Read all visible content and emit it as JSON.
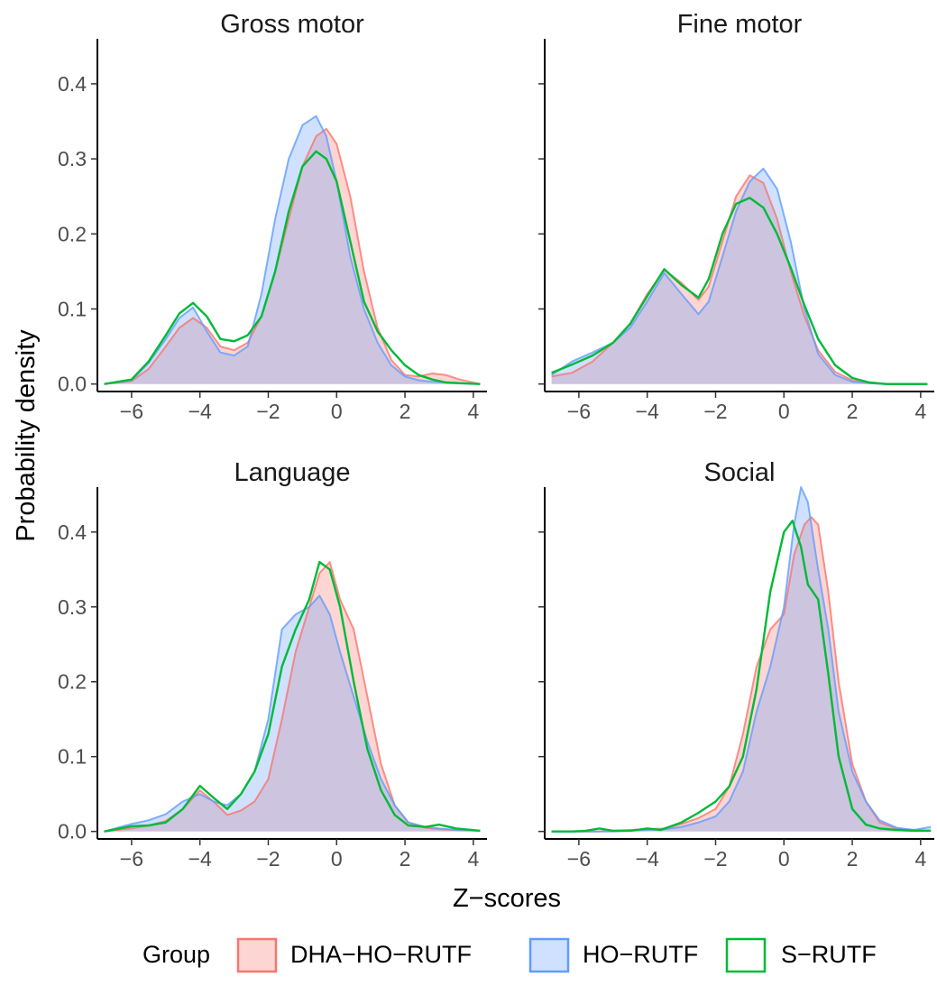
{
  "chart_data": {
    "type": "area",
    "xlabel": "Z−scores",
    "ylabel": "Probability density",
    "xlim": [
      -7,
      4.4
    ],
    "ylim": [
      -0.01,
      0.46
    ],
    "x_ticks": [
      -6,
      -4,
      -2,
      0,
      2,
      4
    ],
    "x_tick_labels": [
      "−6",
      "−4",
      "−2",
      "0",
      "2",
      "4"
    ],
    "y_ticks": [
      0.0,
      0.1,
      0.2,
      0.3,
      0.4
    ],
    "y_tick_labels": [
      "0.0",
      "0.1",
      "0.2",
      "0.3",
      "0.4"
    ],
    "grid": false,
    "legend": {
      "title": "Group",
      "placement": "bottom",
      "entries": [
        {
          "label": "DHA−HO−RUTF",
          "line_color": "#F8766D",
          "fill_color": "#F8766D"
        },
        {
          "label": "HO−RUTF",
          "line_color": "#619CFF",
          "fill_color": "#619CFF"
        },
        {
          "label": "S−RUTF",
          "line_color": "#00BA38",
          "fill_color": "#FFFFFF"
        }
      ]
    },
    "panels": [
      {
        "title": "Gross motor",
        "series": [
          {
            "name": "DHA−HO−RUTF",
            "x": [
              -6.8,
              -6,
              -5.5,
              -5,
              -4.6,
              -4.2,
              -3.8,
              -3.4,
              -3,
              -2.6,
              -2.2,
              -1.8,
              -1.4,
              -1,
              -0.6,
              -0.3,
              0,
              0.4,
              0.8,
              1.2,
              1.6,
              2,
              2.4,
              2.8,
              3.2,
              3.6,
              4.2
            ],
            "y": [
              0.0,
              0.004,
              0.02,
              0.05,
              0.075,
              0.088,
              0.075,
              0.05,
              0.045,
              0.055,
              0.09,
              0.15,
              0.22,
              0.29,
              0.33,
              0.34,
              0.32,
              0.25,
              0.15,
              0.075,
              0.032,
              0.012,
              0.01,
              0.014,
              0.012,
              0.006,
              0.0
            ]
          },
          {
            "name": "HO−RUTF",
            "x": [
              -6.8,
              -6,
              -5.5,
              -5,
              -4.6,
              -4.2,
              -3.8,
              -3.4,
              -3,
              -2.6,
              -2.2,
              -1.8,
              -1.4,
              -1,
              -0.6,
              -0.3,
              0,
              0.4,
              0.8,
              1.2,
              1.6,
              2,
              2.4,
              2.8,
              3.2,
              3.6,
              4.2
            ],
            "y": [
              0.0,
              0.005,
              0.028,
              0.06,
              0.088,
              0.102,
              0.07,
              0.042,
              0.038,
              0.05,
              0.12,
              0.22,
              0.3,
              0.345,
              0.357,
              0.33,
              0.27,
              0.17,
              0.1,
              0.055,
              0.025,
              0.01,
              0.005,
              0.003,
              0.002,
              0.001,
              0.0
            ]
          },
          {
            "name": "S−RUTF",
            "x": [
              -6.8,
              -6,
              -5.5,
              -5,
              -4.6,
              -4.2,
              -3.8,
              -3.4,
              -3,
              -2.6,
              -2.2,
              -1.8,
              -1.4,
              -1,
              -0.6,
              -0.3,
              0,
              0.4,
              0.8,
              1.2,
              1.6,
              2,
              2.4,
              2.8,
              3.2,
              3.6,
              4.2
            ],
            "y": [
              0.0,
              0.006,
              0.03,
              0.065,
              0.094,
              0.108,
              0.09,
              0.06,
              0.057,
              0.065,
              0.09,
              0.15,
              0.23,
              0.29,
              0.31,
              0.3,
              0.27,
              0.19,
              0.11,
              0.07,
              0.045,
              0.025,
              0.012,
              0.006,
              0.002,
              0.001,
              0.0
            ]
          }
        ]
      },
      {
        "title": "Fine motor",
        "series": [
          {
            "name": "DHA−HO−RUTF",
            "x": [
              -6.8,
              -6.2,
              -5.6,
              -5,
              -4.5,
              -4,
              -3.5,
              -3,
              -2.5,
              -2.2,
              -1.8,
              -1.4,
              -1,
              -0.6,
              -0.2,
              0.2,
              0.6,
              1,
              1.5,
              2,
              2.5,
              3,
              3.5,
              4.2
            ],
            "y": [
              0.01,
              0.015,
              0.03,
              0.055,
              0.08,
              0.12,
              0.152,
              0.135,
              0.112,
              0.13,
              0.19,
              0.25,
              0.278,
              0.268,
              0.22,
              0.15,
              0.09,
              0.045,
              0.016,
              0.005,
              0.001,
              0.0,
              0.0,
              0.0
            ]
          },
          {
            "name": "HO−RUTF",
            "x": [
              -6.8,
              -6.2,
              -5.6,
              -5,
              -4.5,
              -4,
              -3.5,
              -3,
              -2.5,
              -2.2,
              -1.8,
              -1.4,
              -1,
              -0.6,
              -0.2,
              0.2,
              0.6,
              1,
              1.5,
              2,
              2.5,
              3,
              3.5,
              4.2
            ],
            "y": [
              0.012,
              0.03,
              0.042,
              0.055,
              0.075,
              0.11,
              0.148,
              0.12,
              0.093,
              0.11,
              0.17,
              0.23,
              0.27,
              0.287,
              0.26,
              0.19,
              0.1,
              0.04,
              0.012,
              0.003,
              0.001,
              0.0,
              0.0,
              0.0
            ]
          },
          {
            "name": "S−RUTF",
            "x": [
              -6.8,
              -6.2,
              -5.6,
              -5,
              -4.5,
              -4,
              -3.5,
              -3,
              -2.5,
              -2.2,
              -1.8,
              -1.4,
              -1,
              -0.6,
              -0.2,
              0.2,
              0.6,
              1,
              1.5,
              2,
              2.5,
              3,
              3.5,
              4.2
            ],
            "y": [
              0.015,
              0.026,
              0.038,
              0.055,
              0.08,
              0.117,
              0.153,
              0.132,
              0.115,
              0.14,
              0.2,
              0.24,
              0.248,
              0.235,
              0.2,
              0.155,
              0.105,
              0.06,
              0.025,
              0.008,
              0.002,
              0.0,
              0.0,
              0.0
            ]
          }
        ]
      },
      {
        "title": "Language",
        "series": [
          {
            "name": "DHA−HO−RUTF",
            "x": [
              -6.8,
              -6,
              -5.5,
              -5,
              -4.5,
              -4,
              -3.6,
              -3.2,
              -2.8,
              -2.4,
              -2,
              -1.6,
              -1.2,
              -0.8,
              -0.5,
              -0.2,
              0.1,
              0.5,
              0.9,
              1.3,
              1.7,
              2.1,
              2.6,
              3,
              3.5,
              4.2
            ],
            "y": [
              0.0,
              0.004,
              0.008,
              0.014,
              0.03,
              0.055,
              0.04,
              0.022,
              0.028,
              0.04,
              0.07,
              0.15,
              0.24,
              0.3,
              0.345,
              0.36,
              0.31,
              0.27,
              0.18,
              0.09,
              0.035,
              0.012,
              0.005,
              0.003,
              0.002,
              0.001
            ]
          },
          {
            "name": "HO−RUTF",
            "x": [
              -6.8,
              -6,
              -5.5,
              -5,
              -4.5,
              -4,
              -3.6,
              -3.2,
              -2.8,
              -2.4,
              -2,
              -1.6,
              -1.2,
              -0.8,
              -0.5,
              -0.2,
              0.1,
              0.5,
              0.9,
              1.3,
              1.7,
              2.1,
              2.6,
              3,
              3.5,
              4.2
            ],
            "y": [
              0.0,
              0.01,
              0.015,
              0.023,
              0.04,
              0.05,
              0.04,
              0.035,
              0.05,
              0.08,
              0.15,
              0.27,
              0.29,
              0.3,
              0.315,
              0.29,
              0.24,
              0.18,
              0.12,
              0.07,
              0.035,
              0.012,
              0.006,
              0.004,
              0.002,
              0.001
            ]
          },
          {
            "name": "S−RUTF",
            "x": [
              -6.8,
              -6,
              -5.5,
              -5,
              -4.5,
              -4,
              -3.6,
              -3.2,
              -2.8,
              -2.4,
              -2,
              -1.6,
              -1.2,
              -0.8,
              -0.5,
              -0.2,
              0.1,
              0.5,
              0.9,
              1.3,
              1.7,
              2.1,
              2.6,
              3,
              3.5,
              4.2
            ],
            "y": [
              0.0,
              0.007,
              0.008,
              0.012,
              0.03,
              0.061,
              0.045,
              0.03,
              0.05,
              0.08,
              0.13,
              0.22,
              0.27,
              0.31,
              0.36,
              0.35,
              0.3,
              0.2,
              0.11,
              0.055,
              0.022,
              0.008,
              0.006,
              0.009,
              0.004,
              0.001
            ]
          }
        ]
      },
      {
        "title": "Social",
        "series": [
          {
            "name": "DHA−HO−RUTF",
            "x": [
              -6.8,
              -6,
              -5.5,
              -5,
              -4.5,
              -4,
              -3.5,
              -3,
              -2.5,
              -2,
              -1.6,
              -1.2,
              -0.8,
              -0.4,
              0,
              0.3,
              0.6,
              0.8,
              1,
              1.3,
              1.6,
              2,
              2.4,
              2.8,
              3.3,
              3.8,
              4.3
            ],
            "y": [
              0.0,
              0.0,
              0.0,
              0.001,
              0.002,
              0.003,
              0.004,
              0.01,
              0.018,
              0.03,
              0.06,
              0.13,
              0.22,
              0.27,
              0.29,
              0.37,
              0.41,
              0.42,
              0.41,
              0.32,
              0.2,
              0.09,
              0.04,
              0.012,
              0.004,
              0.002,
              0.001
            ]
          },
          {
            "name": "HO−RUTF",
            "x": [
              -6.8,
              -6,
              -5.5,
              -5,
              -4.5,
              -4,
              -3.5,
              -3,
              -2.5,
              -2,
              -1.6,
              -1.2,
              -0.8,
              -0.4,
              0,
              0.3,
              0.5,
              0.7,
              1,
              1.3,
              1.6,
              2,
              2.4,
              2.8,
              3.3,
              3.8,
              4.3
            ],
            "y": [
              0.0,
              0.0,
              0.0,
              0.0,
              0.001,
              0.002,
              0.003,
              0.006,
              0.012,
              0.02,
              0.04,
              0.08,
              0.16,
              0.22,
              0.3,
              0.41,
              0.46,
              0.44,
              0.35,
              0.27,
              0.16,
              0.08,
              0.04,
              0.015,
              0.005,
              0.002,
              0.006
            ]
          },
          {
            "name": "S−RUTF",
            "x": [
              -6.8,
              -6.2,
              -5.8,
              -5.4,
              -5,
              -4.5,
              -4,
              -3.6,
              -3,
              -2.5,
              -2,
              -1.6,
              -1.2,
              -0.8,
              -0.4,
              0,
              0.25,
              0.5,
              0.7,
              1,
              1.3,
              1.6,
              2,
              2.4,
              2.8,
              3.3,
              3.8,
              4.3
            ],
            "y": [
              0.0,
              0.0,
              0.001,
              0.004,
              0.001,
              0.001,
              0.004,
              0.002,
              0.012,
              0.025,
              0.04,
              0.06,
              0.1,
              0.19,
              0.32,
              0.4,
              0.415,
              0.38,
              0.33,
              0.31,
              0.21,
              0.1,
              0.03,
              0.009,
              0.004,
              0.002,
              0.001,
              0.001
            ]
          }
        ]
      }
    ]
  }
}
